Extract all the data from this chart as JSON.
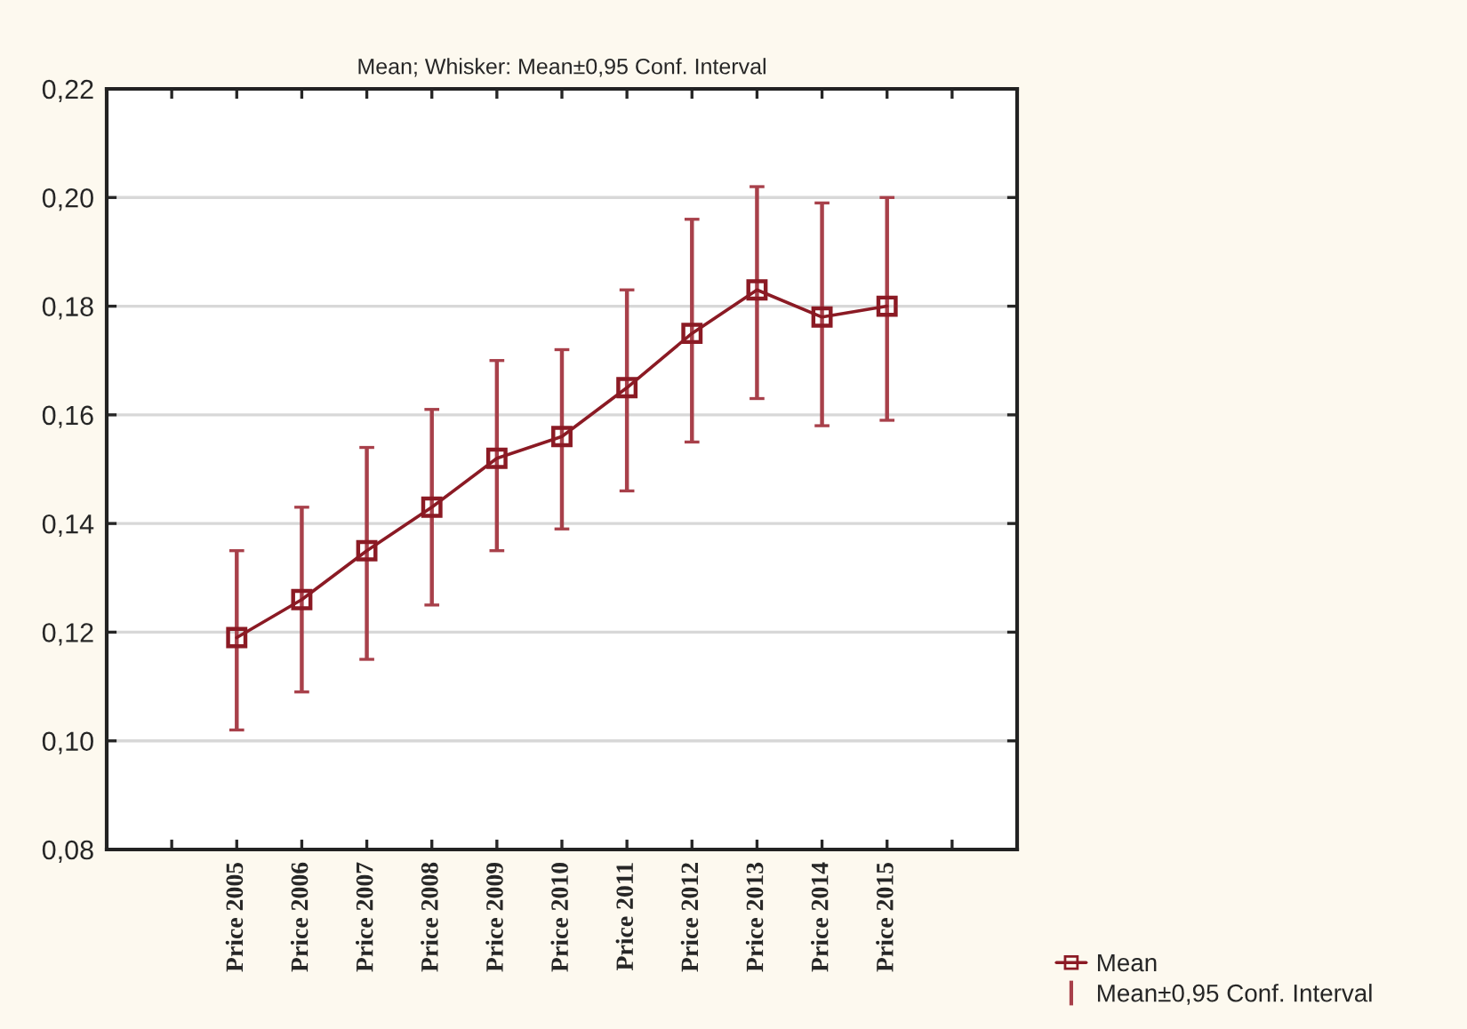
{
  "chart_data": {
    "type": "line",
    "title": "Mean; Whisker: Mean±0,95 Conf. Interval",
    "categories": [
      null,
      "Price 2005",
      "Price 2006",
      "Price 2007",
      "Price 2008",
      "Price 2009",
      "Price 2010",
      "Price 2011",
      "Price 2012",
      "Price 2013",
      "Price 2014",
      "Price 2015",
      null
    ],
    "series": [
      {
        "name": "Mean",
        "color": "#8b1a24",
        "marker": "square",
        "line_style": "solid",
        "values": [
          null,
          0.119,
          0.126,
          0.135,
          0.143,
          0.152,
          0.156,
          0.165,
          0.175,
          0.183,
          0.178,
          0.18,
          null
        ],
        "errors": [
          null,
          [
            0.102,
            0.135
          ],
          [
            0.109,
            0.143
          ],
          [
            0.115,
            0.154
          ],
          [
            0.125,
            0.161
          ],
          [
            0.135,
            0.17
          ],
          [
            0.139,
            0.172
          ],
          [
            0.146,
            0.183
          ],
          [
            0.155,
            0.196
          ],
          [
            0.163,
            0.202
          ],
          [
            0.158,
            0.199
          ],
          [
            0.159,
            0.2
          ],
          null
        ]
      }
    ],
    "annotations": [
      "Mean±0,95 Conf. Interval"
    ],
    "ylim": [
      0.08,
      0.22
    ],
    "yticks": [
      {
        "value": 0.08,
        "label": "0,08"
      },
      {
        "value": 0.1,
        "label": "0,10"
      },
      {
        "value": 0.12,
        "label": "0,12"
      },
      {
        "value": 0.14,
        "label": "0,14"
      },
      {
        "value": 0.16,
        "label": "0,16"
      },
      {
        "value": 0.18,
        "label": "0,18"
      },
      {
        "value": 0.2,
        "label": "0,20"
      },
      {
        "value": 0.22,
        "label": "0,22"
      }
    ],
    "grid": "y",
    "legend": "bottom right"
  }
}
